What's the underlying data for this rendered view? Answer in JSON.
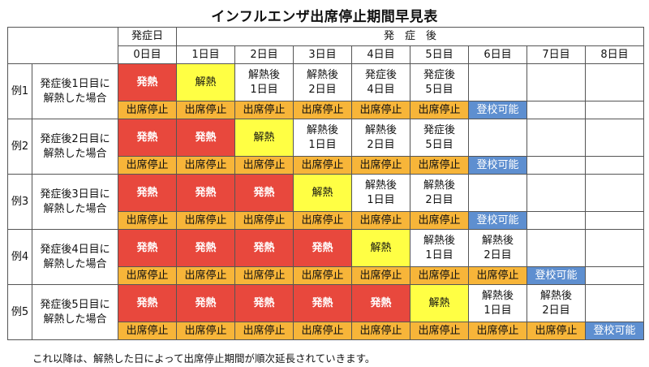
{
  "title": "インフルエンザ出席停止期間早見表",
  "header": {
    "onset_group": "発症日",
    "after_group": "発　症　後",
    "days": [
      "0日目",
      "1日目",
      "2日目",
      "3日目",
      "4日目",
      "5日目",
      "6日目",
      "7日目",
      "8日目"
    ]
  },
  "rows": [
    {
      "label": "例1",
      "desc1": "発症後1日目に",
      "desc2": "解熱した場合",
      "status": [
        [
          "発熱"
        ],
        [
          "解熱"
        ],
        [
          "解熱後",
          "1日目"
        ],
        [
          "解熱後",
          "2日目"
        ],
        [
          "発症後",
          "4日目"
        ],
        [
          "発症後",
          "5日目"
        ],
        [
          ""
        ],
        [
          ""
        ],
        [
          ""
        ]
      ],
      "bar": [
        "出席停止",
        "出席停止",
        "出席停止",
        "出席停止",
        "出席停止",
        "出席停止",
        "登校可能",
        "",
        ""
      ]
    },
    {
      "label": "例2",
      "desc1": "発症後2日目に",
      "desc2": "解熱した場合",
      "status": [
        [
          "発熱"
        ],
        [
          "発熱"
        ],
        [
          "解熱"
        ],
        [
          "解熱後",
          "1日目"
        ],
        [
          "解熱後",
          "2日目"
        ],
        [
          "発症後",
          "5日目"
        ],
        [
          ""
        ],
        [
          ""
        ],
        [
          ""
        ]
      ],
      "bar": [
        "出席停止",
        "出席停止",
        "出席停止",
        "出席停止",
        "出席停止",
        "出席停止",
        "登校可能",
        "",
        ""
      ]
    },
    {
      "label": "例3",
      "desc1": "発症後3日目に",
      "desc2": "解熱した場合",
      "status": [
        [
          "発熱"
        ],
        [
          "発熱"
        ],
        [
          "発熱"
        ],
        [
          "解熱"
        ],
        [
          "解熱後",
          "1日目"
        ],
        [
          "解熱後",
          "2日目"
        ],
        [
          ""
        ],
        [
          ""
        ],
        [
          ""
        ]
      ],
      "bar": [
        "出席停止",
        "出席停止",
        "出席停止",
        "出席停止",
        "出席停止",
        "出席停止",
        "登校可能",
        "",
        ""
      ]
    },
    {
      "label": "例4",
      "desc1": "発症後4日目に",
      "desc2": "解熱した場合",
      "status": [
        [
          "発熱"
        ],
        [
          "発熱"
        ],
        [
          "発熱"
        ],
        [
          "発熱"
        ],
        [
          "解熱"
        ],
        [
          "解熱後",
          "1日目"
        ],
        [
          "解熱後",
          "2日目"
        ],
        [
          ""
        ],
        [
          ""
        ]
      ],
      "bar": [
        "出席停止",
        "出席停止",
        "出席停止",
        "出席停止",
        "出席停止",
        "出席停止",
        "出席停止",
        "登校可能",
        ""
      ]
    },
    {
      "label": "例5",
      "desc1": "発症後5日目に",
      "desc2": "解熱した場合",
      "status": [
        [
          "発熱"
        ],
        [
          "発熱"
        ],
        [
          "発熱"
        ],
        [
          "発熱"
        ],
        [
          "発熱"
        ],
        [
          "解熱"
        ],
        [
          "解熱後",
          "1日目"
        ],
        [
          "解熱後",
          "2日目"
        ],
        [
          ""
        ]
      ],
      "bar": [
        "出席停止",
        "出席停止",
        "出席停止",
        "出席停止",
        "出席停止",
        "出席停止",
        "出席停止",
        "出席停止",
        "登校可能"
      ]
    }
  ],
  "footer": "これ以降は、解熱した日によって出席停止期間が順次延長されていきます。",
  "colors": {
    "fever": "#e8483d",
    "afebrile": "#ffff44",
    "stop": "#f7b539",
    "ok": "#5e8fd0"
  }
}
